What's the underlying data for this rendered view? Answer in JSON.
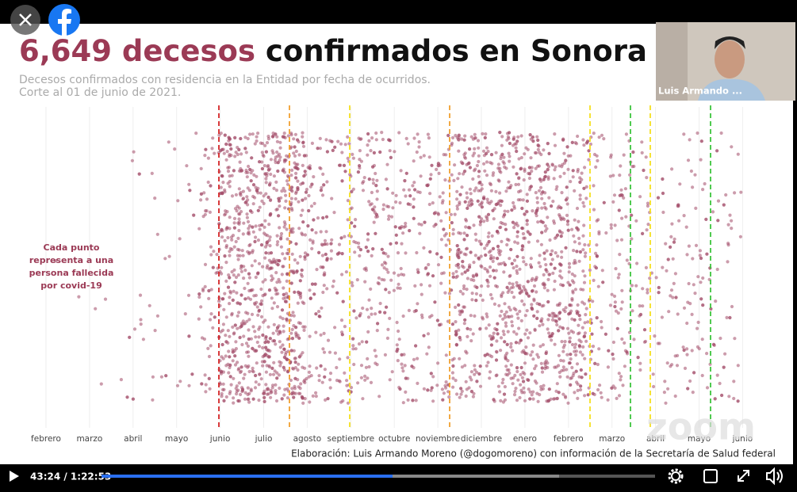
{
  "slide": {
    "title_number": "6,649 decesos",
    "title_rest": " confirmados en Sonora",
    "subtitle_lines": [
      "Decesos confirmados con residencia en la Entidad por fecha de ocurridos.",
      "Corte al 01 de junio de 2021."
    ],
    "annotation_lines": [
      "Cada punto",
      "representa a una",
      "persona fallecida",
      "por covid-19"
    ],
    "months": [
      "febrero",
      "marzo",
      "abril",
      "mayo",
      "junio",
      "julio",
      "agosto",
      "septiembre",
      "octubre",
      "noviembre",
      "diciembre",
      "enero",
      "febrero",
      "marzo",
      "abril",
      "mayo",
      "junio"
    ],
    "credit": "Elaboración: Luis Armando Moreno (@dogomoreno) con información de la Secretaría de Salud federal",
    "watermark": "zoom"
  },
  "participant": {
    "name": "Luis Armando ..."
  },
  "player": {
    "time": "43:24 / 1:22:53"
  }
}
